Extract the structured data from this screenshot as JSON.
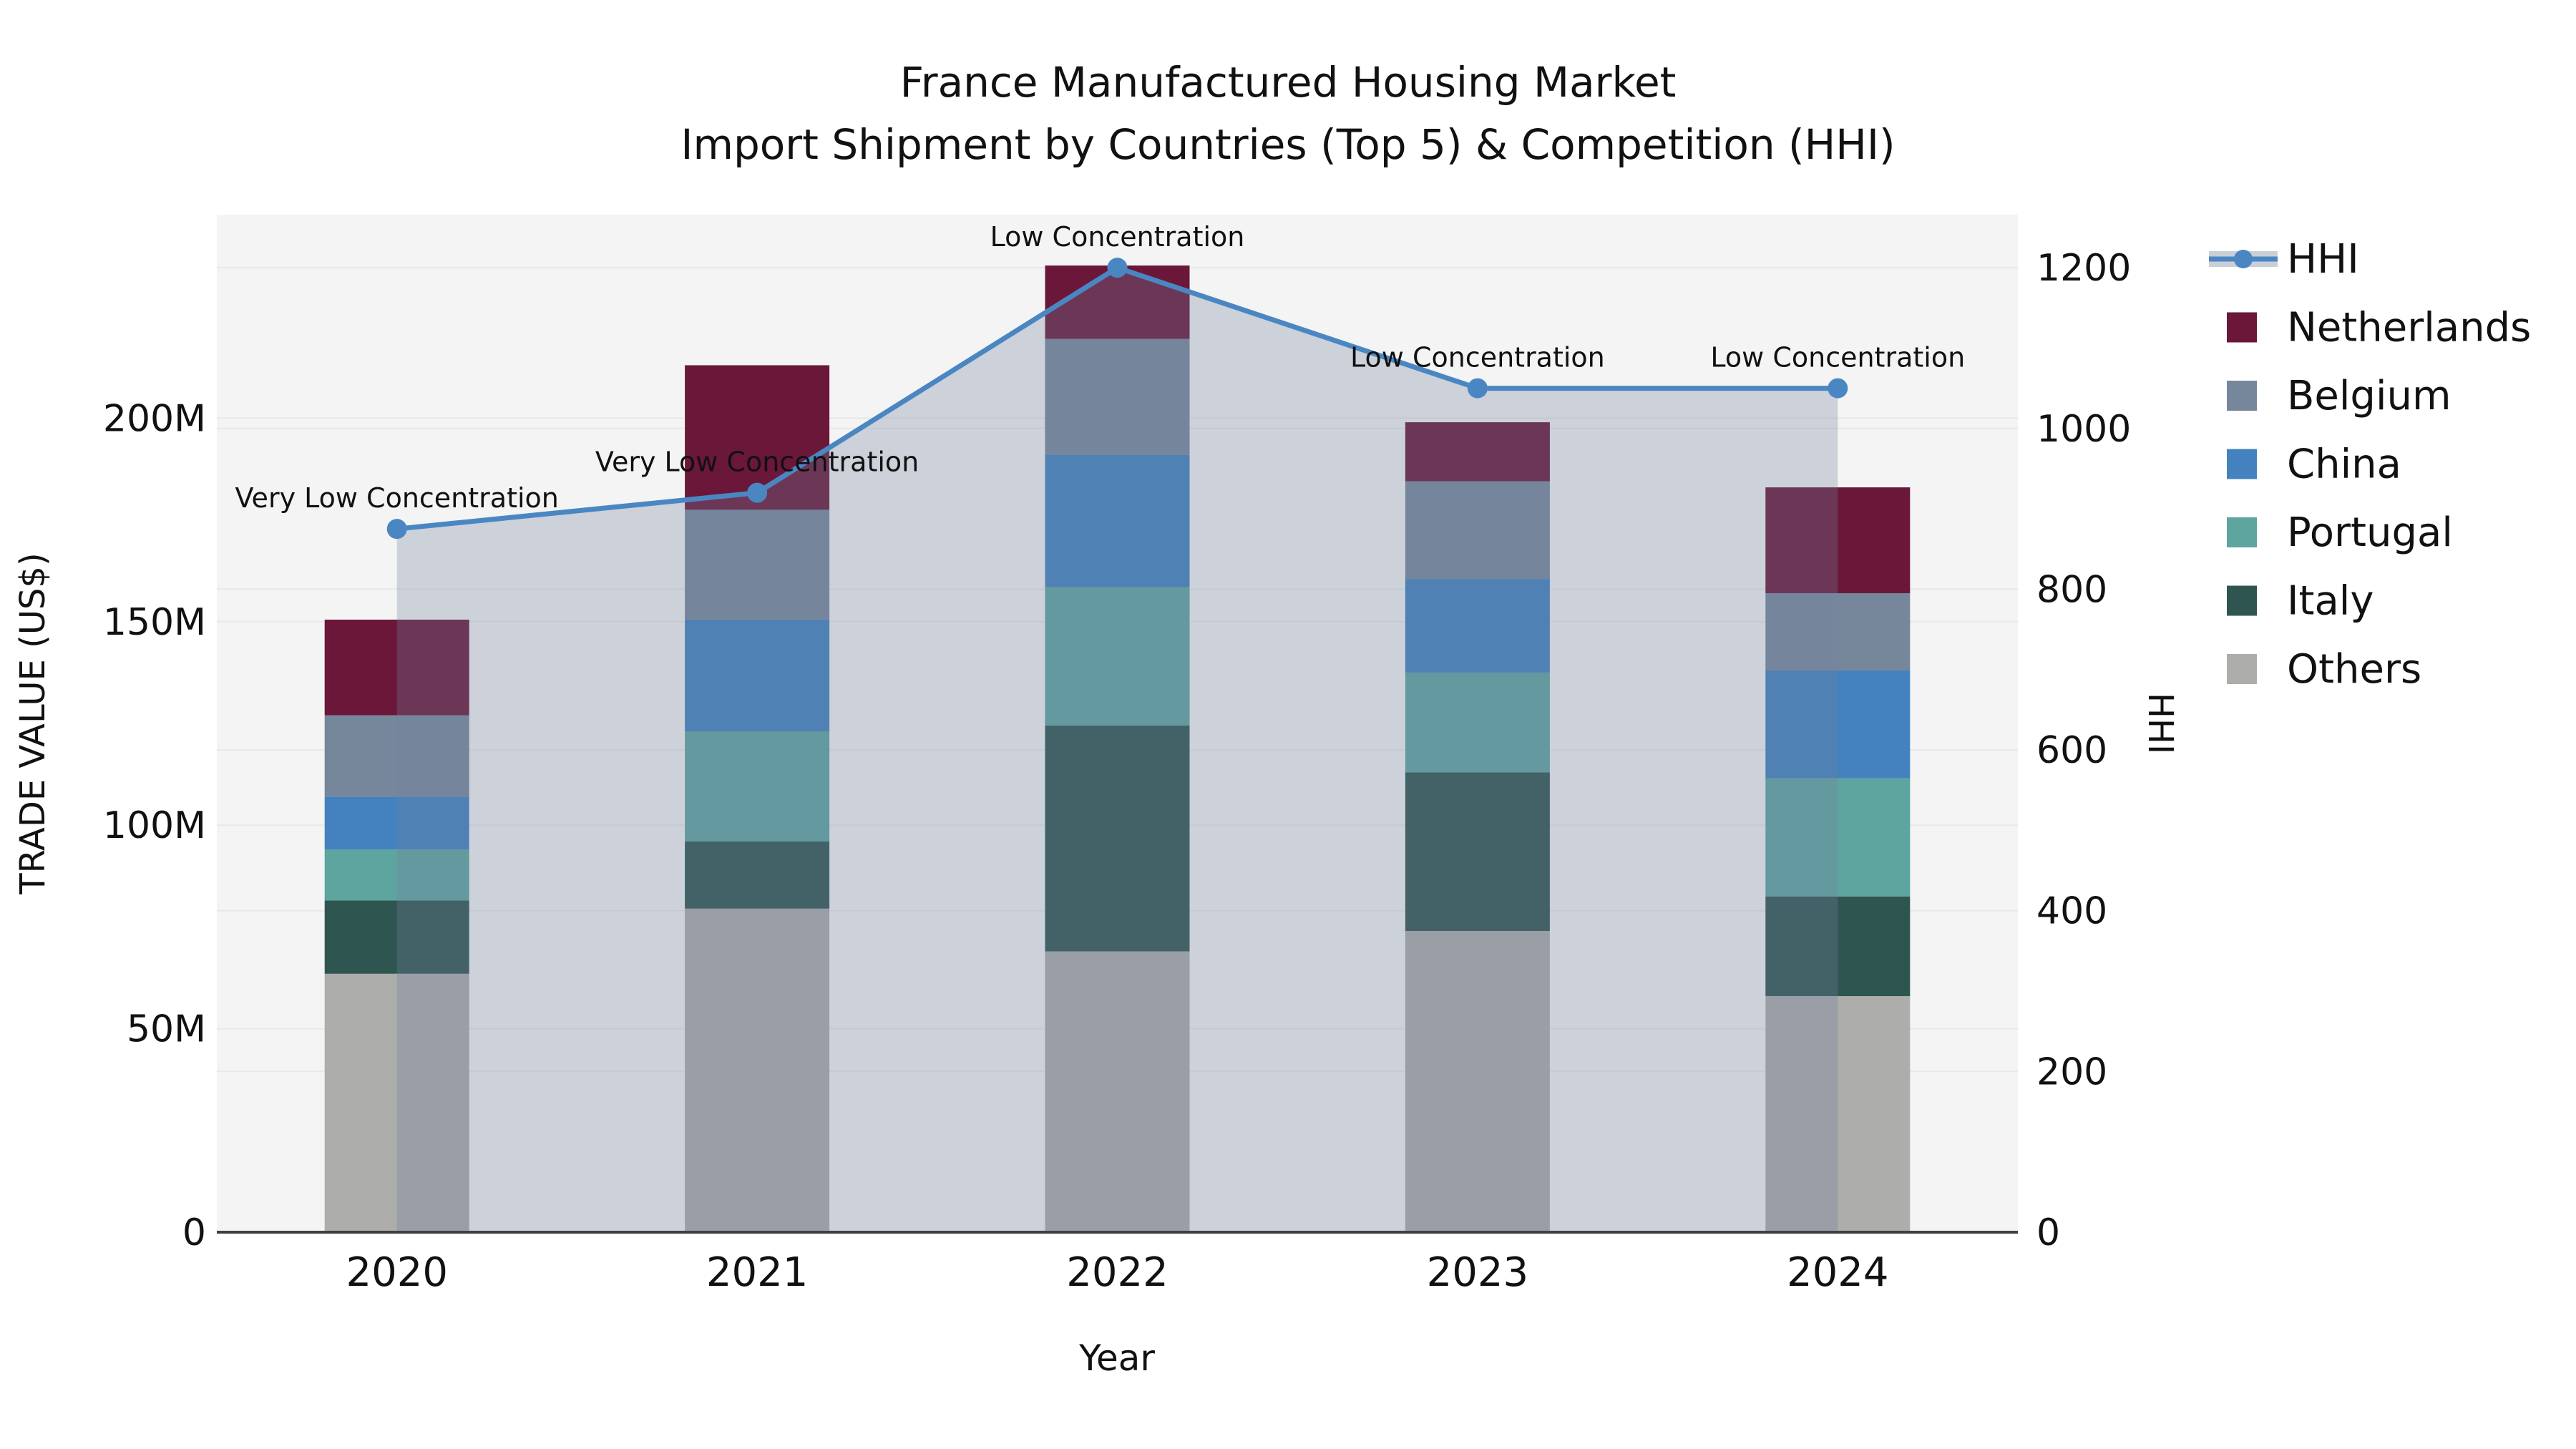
{
  "title": {
    "line1": "France Manufactured Housing Market",
    "line2": "Import Shipment by Countries (Top 5) & Competition (HHI)"
  },
  "axis_labels": {
    "left": "TRADE VALUE (US$)",
    "right": "HHI",
    "bottom": "Year"
  },
  "legend": {
    "items": [
      "HHI",
      "Netherlands",
      "Belgium",
      "China",
      "Portugal",
      "Italy",
      "Others"
    ]
  },
  "chart_data": {
    "type": "bar",
    "subtype": "stacked-bars-with-hhi-line-and-area",
    "title": "France Manufactured Housing Market — Import Shipment by Countries (Top 5) & Competition (HHI)",
    "xlabel": "Year",
    "ylabel_left": "TRADE VALUE (US$)",
    "ylabel_right": "HHI",
    "categories": [
      "2020",
      "2021",
      "2022",
      "2023",
      "2024"
    ],
    "unit": "US$ millions",
    "series": [
      {
        "name": "Others",
        "color": "#adadab",
        "values": [
          63.5,
          79.5,
          69.0,
          74.0,
          58.0
        ]
      },
      {
        "name": "Italy",
        "color": "#2f5551",
        "values": [
          18.0,
          16.5,
          55.5,
          39.0,
          24.5
        ]
      },
      {
        "name": "Portugal",
        "color": "#5ea49f",
        "values": [
          12.5,
          27.0,
          34.0,
          24.5,
          29.0
        ]
      },
      {
        "name": "China",
        "color": "#4382be",
        "values": [
          13.0,
          27.5,
          32.5,
          23.0,
          26.5
        ]
      },
      {
        "name": "Belgium",
        "color": "#76879b",
        "values": [
          20.0,
          27.0,
          28.5,
          24.0,
          19.0
        ]
      },
      {
        "name": "Netherlands",
        "color": "#6a1739",
        "values": [
          23.5,
          35.5,
          18.0,
          14.5,
          26.0
        ]
      }
    ],
    "totals_M": [
      150.5,
      213.0,
      237.5,
      199.0,
      183.0
    ],
    "line_series": {
      "name": "HHI",
      "axis": "right",
      "color": "#4a87c2",
      "area_fill": "rgba(112,130,160,0.30)",
      "values": [
        875,
        920,
        1200,
        1050,
        1050
      ]
    },
    "annotations": [
      {
        "category": "2020",
        "text": "Very Low Concentration"
      },
      {
        "category": "2021",
        "text": "Very Low Concentration"
      },
      {
        "category": "2022",
        "text": "Low Concentration"
      },
      {
        "category": "2023",
        "text": "Low Concentration"
      },
      {
        "category": "2024",
        "text": "Low Concentration"
      }
    ],
    "y_left": {
      "ticks": [
        "0",
        "50M",
        "100M",
        "150M",
        "200M"
      ],
      "tick_values_M": [
        0,
        50,
        100,
        150,
        200
      ],
      "axis_max_M": 250
    },
    "y_right": {
      "ticks": [
        "0",
        "200",
        "400",
        "600",
        "800",
        "1000",
        "1200"
      ],
      "tick_values": [
        0,
        200,
        400,
        600,
        800,
        1000,
        1200
      ],
      "axis_max": 1266
    },
    "legend_order": [
      "HHI",
      "Netherlands",
      "Belgium",
      "China",
      "Portugal",
      "Italy",
      "Others"
    ],
    "colors": {
      "plot_background": "#f4f4f4",
      "gridline": "#e8e8e8",
      "axis_line": "#3f3f3f",
      "text": "#111111"
    }
  }
}
